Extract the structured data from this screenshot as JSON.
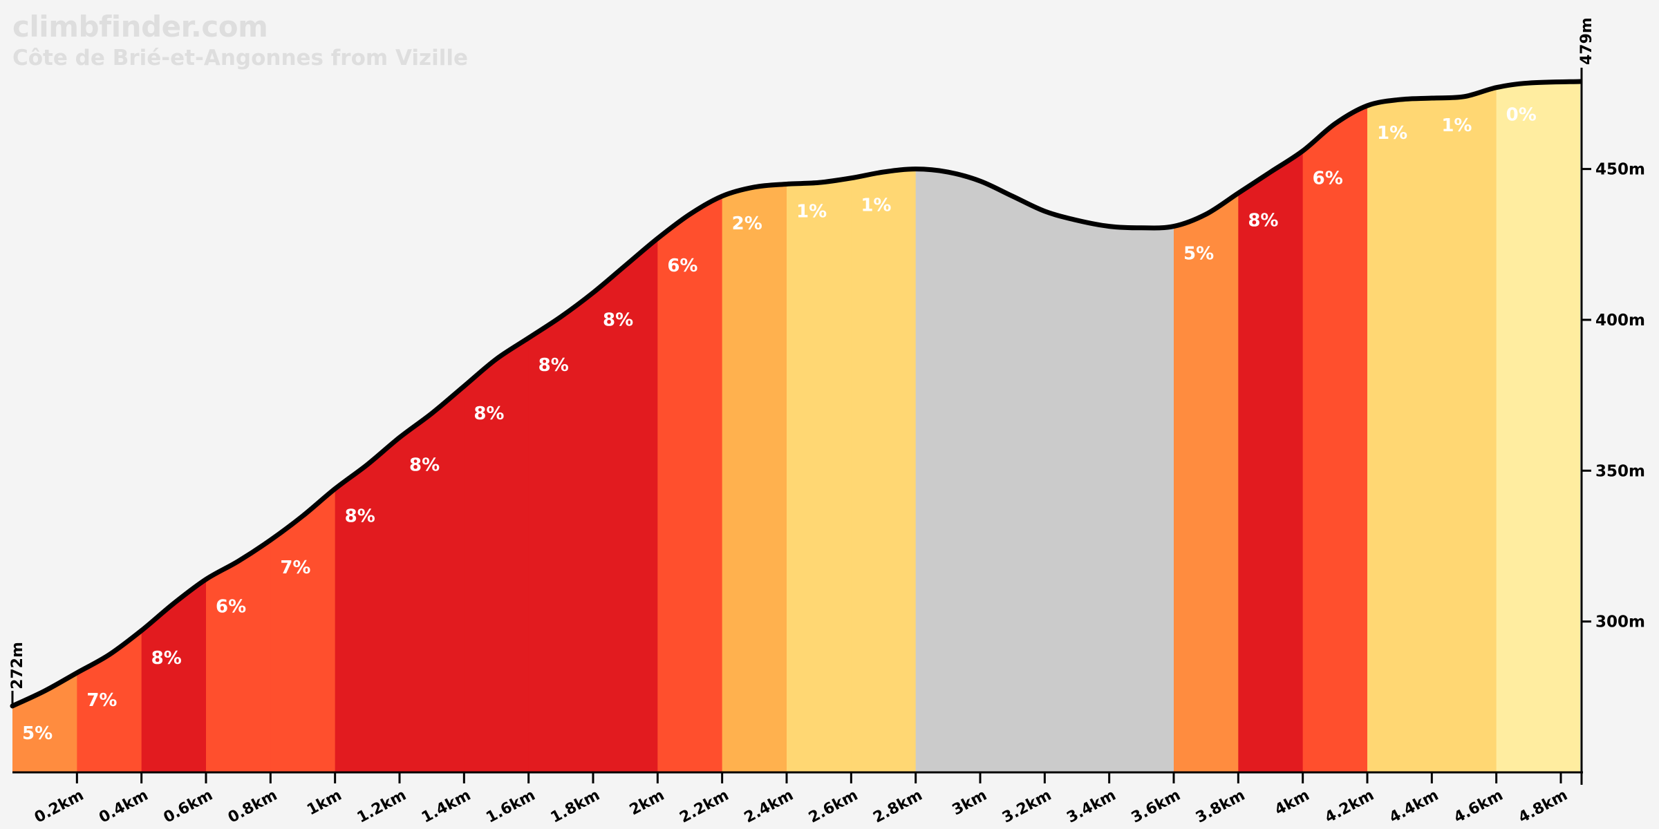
{
  "header": {
    "brand": "climbfinder.com",
    "title": "Côte de Brié-et-Angonnes from Vizille"
  },
  "chart_data": {
    "type": "area",
    "title": "Côte de Brié-et-Angonnes from Vizille",
    "xlabel": "",
    "ylabel": "",
    "xlim": [
      0,
      4.86
    ],
    "ylim": [
      250,
      479
    ],
    "distance_unit": "km",
    "elevation_unit": "m",
    "x_ticks": [
      {
        "value": 0.2,
        "label": "0.2km"
      },
      {
        "value": 0.4,
        "label": "0.4km"
      },
      {
        "value": 0.6,
        "label": "0.6km"
      },
      {
        "value": 0.8,
        "label": "0.8km"
      },
      {
        "value": 1.0,
        "label": "1km"
      },
      {
        "value": 1.2,
        "label": "1.2km"
      },
      {
        "value": 1.4,
        "label": "1.4km"
      },
      {
        "value": 1.6,
        "label": "1.6km"
      },
      {
        "value": 1.8,
        "label": "1.8km"
      },
      {
        "value": 2.0,
        "label": "2km"
      },
      {
        "value": 2.2,
        "label": "2.2km"
      },
      {
        "value": 2.4,
        "label": "2.4km"
      },
      {
        "value": 2.6,
        "label": "2.6km"
      },
      {
        "value": 2.8,
        "label": "2.8km"
      },
      {
        "value": 3.0,
        "label": "3km"
      },
      {
        "value": 3.2,
        "label": "3.2km"
      },
      {
        "value": 3.4,
        "label": "3.4km"
      },
      {
        "value": 3.6,
        "label": "3.6km"
      },
      {
        "value": 3.8,
        "label": "3.8km"
      },
      {
        "value": 4.0,
        "label": "4km"
      },
      {
        "value": 4.2,
        "label": "4.2km"
      },
      {
        "value": 4.4,
        "label": "4.4km"
      },
      {
        "value": 4.6,
        "label": "4.6km"
      },
      {
        "value": 4.8,
        "label": "4.8km"
      }
    ],
    "y_ticks": [
      {
        "value": 300,
        "label": "300m"
      },
      {
        "value": 350,
        "label": "350m"
      },
      {
        "value": 400,
        "label": "400m"
      },
      {
        "value": 450,
        "label": "450m"
      }
    ],
    "start_elevation": {
      "value": 272,
      "label": "272m"
    },
    "end_elevation": {
      "value": 479,
      "label": "479m"
    },
    "profile": [
      [
        0,
        272
      ],
      [
        0.1,
        277
      ],
      [
        0.2,
        283
      ],
      [
        0.3,
        289
      ],
      [
        0.4,
        297
      ],
      [
        0.5,
        306
      ],
      [
        0.6,
        314
      ],
      [
        0.7,
        320
      ],
      [
        0.8,
        327
      ],
      [
        0.9,
        335
      ],
      [
        1.0,
        344
      ],
      [
        1.1,
        352
      ],
      [
        1.2,
        361
      ],
      [
        1.3,
        369
      ],
      [
        1.4,
        378
      ],
      [
        1.5,
        387
      ],
      [
        1.6,
        394
      ],
      [
        1.7,
        401
      ],
      [
        1.8,
        409
      ],
      [
        1.9,
        418
      ],
      [
        2.0,
        427
      ],
      [
        2.1,
        435
      ],
      [
        2.2,
        441
      ],
      [
        2.3,
        444
      ],
      [
        2.4,
        445
      ],
      [
        2.5,
        445.5
      ],
      [
        2.6,
        447
      ],
      [
        2.7,
        449
      ],
      [
        2.8,
        450
      ],
      [
        2.9,
        449
      ],
      [
        3.0,
        446
      ],
      [
        3.1,
        441
      ],
      [
        3.2,
        436
      ],
      [
        3.3,
        433
      ],
      [
        3.4,
        431
      ],
      [
        3.5,
        430.5
      ],
      [
        3.6,
        431
      ],
      [
        3.7,
        435
      ],
      [
        3.8,
        442
      ],
      [
        3.9,
        449
      ],
      [
        4.0,
        456
      ],
      [
        4.1,
        465
      ],
      [
        4.2,
        471
      ],
      [
        4.3,
        473
      ],
      [
        4.4,
        473.5
      ],
      [
        4.5,
        474
      ],
      [
        4.6,
        477
      ],
      [
        4.7,
        478.5
      ],
      [
        4.86,
        479
      ]
    ],
    "segments": [
      {
        "start": 0.0,
        "end": 0.2,
        "gradient": "5%",
        "color": "#ff8c3f"
      },
      {
        "start": 0.2,
        "end": 0.4,
        "gradient": "7%",
        "color": "#ff4f2d"
      },
      {
        "start": 0.4,
        "end": 0.6,
        "gradient": "8%",
        "color": "#e21b1f"
      },
      {
        "start": 0.6,
        "end": 0.8,
        "gradient": "6%",
        "color": "#ff4f2d"
      },
      {
        "start": 0.8,
        "end": 1.0,
        "gradient": "7%",
        "color": "#ff4f2d"
      },
      {
        "start": 1.0,
        "end": 1.2,
        "gradient": "8%",
        "color": "#e21b1f"
      },
      {
        "start": 1.2,
        "end": 1.4,
        "gradient": "8%",
        "color": "#e21b1f"
      },
      {
        "start": 1.4,
        "end": 1.6,
        "gradient": "8%",
        "color": "#e21b1f"
      },
      {
        "start": 1.6,
        "end": 1.8,
        "gradient": "8%",
        "color": "#e21b1f"
      },
      {
        "start": 1.8,
        "end": 2.0,
        "gradient": "8%",
        "color": "#e21b1f"
      },
      {
        "start": 2.0,
        "end": 2.2,
        "gradient": "6%",
        "color": "#ff4f2d"
      },
      {
        "start": 2.2,
        "end": 2.4,
        "gradient": "2%",
        "color": "#ffb14e"
      },
      {
        "start": 2.4,
        "end": 2.6,
        "gradient": "1%",
        "color": "#ffd773"
      },
      {
        "start": 2.6,
        "end": 2.8,
        "gradient": "1%",
        "color": "#ffd773"
      },
      {
        "start": 2.8,
        "end": 3.6,
        "gradient": "",
        "color": "#cbcbcb"
      },
      {
        "start": 3.6,
        "end": 3.8,
        "gradient": "5%",
        "color": "#ff8c3f"
      },
      {
        "start": 3.8,
        "end": 4.0,
        "gradient": "8%",
        "color": "#e21b1f"
      },
      {
        "start": 4.0,
        "end": 4.2,
        "gradient": "6%",
        "color": "#ff4f2d"
      },
      {
        "start": 4.2,
        "end": 4.4,
        "gradient": "1%",
        "color": "#ffd773"
      },
      {
        "start": 4.4,
        "end": 4.6,
        "gradient": "1%",
        "color": "#ffd773"
      },
      {
        "start": 4.6,
        "end": 4.86,
        "gradient": "0%",
        "color": "#ffeda0"
      }
    ],
    "grid": false,
    "legend": "none"
  }
}
